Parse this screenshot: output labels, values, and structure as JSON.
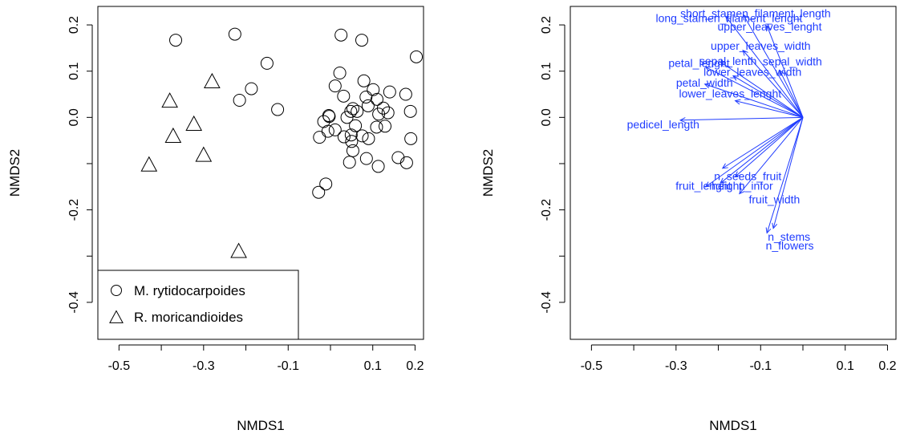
{
  "chart_data": [
    {
      "type": "scatter",
      "xlabel": "NMDS1",
      "ylabel": "NMDS2",
      "xlim": [
        -0.55,
        0.22
      ],
      "ylim": [
        -0.48,
        0.24
      ],
      "xticks": [
        -0.5,
        -0.4,
        -0.3,
        -0.2,
        -0.1,
        0.0,
        0.1,
        0.2
      ],
      "xtick_labels": [
        "-0.5",
        "",
        "-0.3",
        "",
        "-0.1",
        "",
        "0.1",
        "0.2"
      ],
      "yticks": [
        -0.4,
        -0.3,
        -0.2,
        -0.1,
        0.0,
        0.1,
        0.2
      ],
      "ytick_labels": [
        "-0.4",
        "",
        "-0.2",
        "",
        "0.0",
        "0.1",
        "0.2"
      ],
      "legend": {
        "placement": "bottom-left",
        "entries": [
          {
            "label": "M. rytidocarpoides",
            "marker": "circle"
          },
          {
            "label": "R. moricandioides",
            "marker": "triangle"
          }
        ]
      },
      "series": [
        {
          "name": "M. rytidocarpoides",
          "marker": "circle",
          "points": [
            [
              -0.366,
              0.167
            ],
            [
              -0.226,
              0.18
            ],
            [
              -0.15,
              0.117
            ],
            [
              -0.187,
              0.062
            ],
            [
              -0.215,
              0.037
            ],
            [
              -0.125,
              0.017
            ],
            [
              -0.028,
              -0.162
            ],
            [
              -0.011,
              -0.144
            ],
            [
              -0.026,
              -0.043
            ],
            [
              -0.003,
              0.002
            ],
            [
              -0.004,
              0.004
            ],
            [
              -0.016,
              -0.009
            ],
            [
              -0.006,
              -0.03
            ],
            [
              0.025,
              0.178
            ],
            [
              0.031,
              0.046
            ],
            [
              0.039,
              0.0
            ],
            [
              0.048,
              0.013
            ],
            [
              0.011,
              0.068
            ],
            [
              0.022,
              0.096
            ],
            [
              0.053,
              0.019
            ],
            [
              0.063,
              0.013
            ],
            [
              0.059,
              -0.018
            ],
            [
              0.049,
              -0.038
            ],
            [
              0.05,
              -0.052
            ],
            [
              0.053,
              -0.072
            ],
            [
              0.045,
              -0.097
            ],
            [
              0.074,
              0.167
            ],
            [
              0.079,
              0.079
            ],
            [
              0.084,
              0.044
            ],
            [
              0.089,
              0.025
            ],
            [
              0.09,
              -0.046
            ],
            [
              0.085,
              -0.089
            ],
            [
              0.101,
              0.06
            ],
            [
              0.11,
              0.039
            ],
            [
              0.114,
              0.007
            ],
            [
              0.109,
              -0.021
            ],
            [
              0.113,
              -0.106
            ],
            [
              0.125,
              0.02
            ],
            [
              0.14,
              0.055
            ],
            [
              0.129,
              -0.019
            ],
            [
              0.136,
              0.01
            ],
            [
              0.16,
              -0.087
            ],
            [
              0.178,
              0.05
            ],
            [
              0.18,
              -0.098
            ],
            [
              0.189,
              0.013
            ],
            [
              0.19,
              -0.046
            ],
            [
              0.203,
              0.131
            ],
            [
              0.032,
              -0.042
            ],
            [
              0.075,
              -0.04
            ],
            [
              0.011,
              -0.027
            ]
          ]
        },
        {
          "name": "R. moricandioides",
          "marker": "triangle",
          "points": [
            [
              -0.429,
              -0.103
            ],
            [
              -0.38,
              0.035
            ],
            [
              -0.372,
              -0.041
            ],
            [
              -0.323,
              -0.015
            ],
            [
              -0.3,
              -0.082
            ],
            [
              -0.28,
              0.077
            ],
            [
              -0.217,
              -0.29
            ]
          ]
        }
      ]
    },
    {
      "type": "biplot",
      "xlabel": "NMDS1",
      "ylabel": "NMDS2",
      "xlim": [
        -0.55,
        0.22
      ],
      "ylim": [
        -0.48,
        0.24
      ],
      "xticks": [
        -0.5,
        -0.4,
        -0.3,
        -0.2,
        -0.1,
        0.0,
        0.1,
        0.2
      ],
      "xtick_labels": [
        "-0.5",
        "",
        "-0.3",
        "",
        "-0.1",
        "",
        "0.1",
        "0.2"
      ],
      "yticks": [
        -0.4,
        -0.3,
        -0.2,
        -0.1,
        0.0,
        0.1,
        0.2
      ],
      "ytick_labels": [
        "-0.4",
        "",
        "-0.2",
        "",
        "0.0",
        "0.1",
        "0.2"
      ],
      "origin": [
        0.0,
        0.0
      ],
      "vectors": [
        {
          "label": "short_stamen_filament_length",
          "x": -0.141,
          "y": 0.222
        },
        {
          "label": "long_stamen_filament_lenght",
          "x": -0.182,
          "y": 0.218
        },
        {
          "label": "upper_leaves_lenght",
          "x": -0.085,
          "y": 0.198
        },
        {
          "label": "upper_leaves_width",
          "x": -0.142,
          "y": 0.145
        },
        {
          "label": "sepal_lenth",
          "x": -0.195,
          "y": 0.12
        },
        {
          "label": "sepal_width",
          "x": -0.055,
          "y": 0.102
        },
        {
          "label": "petal_lenght",
          "x": -0.23,
          "y": 0.109
        },
        {
          "label": "lower_leaves_width",
          "x": -0.165,
          "y": 0.09
        },
        {
          "label": "petal_width",
          "x": -0.232,
          "y": 0.072
        },
        {
          "label": "lower_leaves_lenght",
          "x": -0.16,
          "y": 0.036
        },
        {
          "label": "pedicel_length",
          "x": -0.29,
          "y": -0.006
        },
        {
          "label": "n_seeds_fruit",
          "x": -0.19,
          "y": -0.11
        },
        {
          "label": "fruit_lenght",
          "x": -0.23,
          "y": -0.15
        },
        {
          "label": "height",
          "x": -0.195,
          "y": -0.142
        },
        {
          "label": "n_infor",
          "x": -0.16,
          "y": -0.128
        },
        {
          "label": "fruit_width",
          "x": -0.15,
          "y": -0.165
        },
        {
          "label": "n_stems",
          "x": -0.07,
          "y": -0.24
        },
        {
          "label": "n_flowers",
          "x": -0.085,
          "y": -0.25
        }
      ],
      "label_positions": [
        [
          "short_stamen_filament_length",
          -0.29,
          0.225
        ],
        [
          "long_stamen_filament_lenght",
          -0.348,
          0.215
        ],
        [
          "upper_leaves_lenght",
          -0.202,
          0.197
        ],
        [
          "upper_leaves_width",
          -0.218,
          0.155
        ],
        [
          "sepal_lenth",
          -0.245,
          0.122
        ],
        [
          "sepal_width",
          -0.095,
          0.121
        ],
        [
          "petal_lenght",
          -0.318,
          0.118
        ],
        [
          "lower_leaves_width",
          -0.235,
          0.099
        ],
        [
          "petal_width",
          -0.3,
          0.075
        ],
        [
          "lower_leaves_lenght",
          -0.293,
          0.052
        ],
        [
          "pedicel_length",
          -0.416,
          -0.015
        ],
        [
          "n_seeds_fruit",
          -0.21,
          -0.127
        ],
        [
          "fruit_lenght",
          -0.301,
          -0.148
        ],
        [
          "height",
          -0.216,
          -0.148
        ],
        [
          "n_infor",
          -0.152,
          -0.148
        ],
        [
          "fruit_width",
          -0.128,
          -0.177
        ],
        [
          "n_stems",
          -0.083,
          -0.258
        ],
        [
          "n_flowers",
          -0.088,
          -0.277
        ]
      ]
    }
  ]
}
